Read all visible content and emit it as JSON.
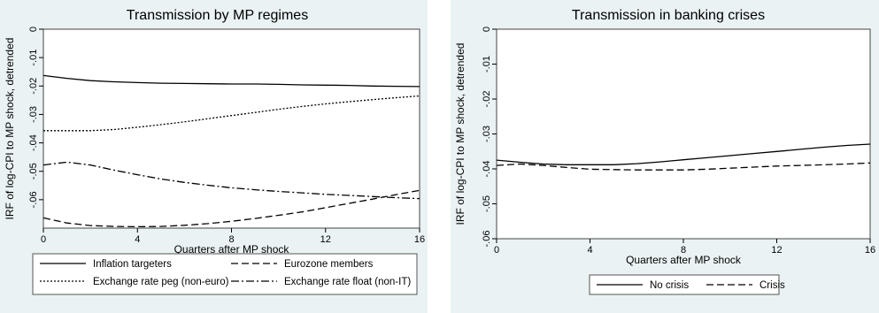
{
  "chart_data": [
    {
      "type": "line",
      "title": "Transmission by MP regimes",
      "xlabel": "Quarters after MP shock",
      "ylabel": "IRF of log-CPI to MP shock, detrended",
      "xlim": [
        0,
        16
      ],
      "ylim": [
        -0.07,
        0
      ],
      "x_ticks": [
        0,
        4,
        8,
        12,
        16
      ],
      "x_tick_labels": [
        "0",
        "4",
        "8",
        "12",
        "16"
      ],
      "y_ticks": [
        0,
        -0.01,
        -0.02,
        -0.03,
        -0.04,
        -0.05,
        -0.06
      ],
      "y_tick_labels": [
        "0",
        "-.01",
        "-.02",
        "-.03",
        "-.04",
        "-.05",
        "-.06"
      ],
      "grid": false,
      "legend_position": "bottom",
      "x": [
        0,
        1,
        2,
        3,
        4,
        5,
        6,
        7,
        8,
        9,
        10,
        11,
        12,
        13,
        14,
        15,
        16
      ],
      "series": [
        {
          "name": "Inflation targeters",
          "style": "solid",
          "values": [
            -0.0163,
            -0.0173,
            -0.0181,
            -0.0185,
            -0.0188,
            -0.019,
            -0.0191,
            -0.0192,
            -0.0193,
            -0.0193,
            -0.0194,
            -0.0196,
            -0.0197,
            -0.0198,
            -0.02,
            -0.0201,
            -0.0202
          ]
        },
        {
          "name": "Eurozone members",
          "style": "dash",
          "values": [
            -0.0664,
            -0.0682,
            -0.0691,
            -0.0694,
            -0.0695,
            -0.0694,
            -0.069,
            -0.0684,
            -0.0676,
            -0.0666,
            -0.0655,
            -0.0643,
            -0.0628,
            -0.0613,
            -0.0598,
            -0.0582,
            -0.0567
          ]
        },
        {
          "name": "Exchange rate peg (non-euro)",
          "style": "dot",
          "values": [
            -0.0357,
            -0.0357,
            -0.0357,
            -0.0353,
            -0.0345,
            -0.0336,
            -0.0326,
            -0.0315,
            -0.0304,
            -0.0293,
            -0.0282,
            -0.0272,
            -0.0263,
            -0.0255,
            -0.0248,
            -0.0241,
            -0.0235
          ]
        },
        {
          "name": "Exchange rate float (non-IT)",
          "style": "dashdot",
          "values": [
            -0.0478,
            -0.0468,
            -0.0478,
            -0.0496,
            -0.0512,
            -0.0527,
            -0.0539,
            -0.0549,
            -0.0558,
            -0.0565,
            -0.0571,
            -0.0576,
            -0.0581,
            -0.0585,
            -0.0589,
            -0.0593,
            -0.0596
          ]
        }
      ]
    },
    {
      "type": "line",
      "title": "Transmission in banking crises",
      "xlabel": "Quarters after MP shock",
      "ylabel": "IRF of log-CPI to MP shock, detrended",
      "xlim": [
        0,
        16
      ],
      "ylim": [
        -0.06,
        0
      ],
      "x_ticks": [
        0,
        4,
        8,
        12,
        16
      ],
      "x_tick_labels": [
        "0",
        "4",
        "8",
        "12",
        "16"
      ],
      "y_ticks": [
        0,
        -0.01,
        -0.02,
        -0.03,
        -0.04,
        -0.05,
        -0.06
      ],
      "y_tick_labels": [
        "0",
        "-.01",
        "-.02",
        "-.03",
        "-.04",
        "-.05",
        "-.06"
      ],
      "grid": false,
      "legend_position": "bottom",
      "x": [
        0,
        1,
        2,
        3,
        4,
        5,
        6,
        7,
        8,
        9,
        10,
        11,
        12,
        13,
        14,
        15,
        16
      ],
      "series": [
        {
          "name": "No crisis",
          "style": "solid",
          "values": [
            -0.0375,
            -0.0381,
            -0.0386,
            -0.0388,
            -0.0388,
            -0.0388,
            -0.0385,
            -0.038,
            -0.0374,
            -0.0368,
            -0.0362,
            -0.0356,
            -0.035,
            -0.0344,
            -0.0338,
            -0.0333,
            -0.0329
          ]
        },
        {
          "name": "Crisis",
          "style": "dash",
          "values": [
            -0.039,
            -0.0386,
            -0.039,
            -0.0396,
            -0.0401,
            -0.0402,
            -0.0403,
            -0.0403,
            -0.0403,
            -0.0401,
            -0.0398,
            -0.0395,
            -0.0392,
            -0.039,
            -0.0388,
            -0.0386,
            -0.0383
          ]
        }
      ]
    }
  ]
}
